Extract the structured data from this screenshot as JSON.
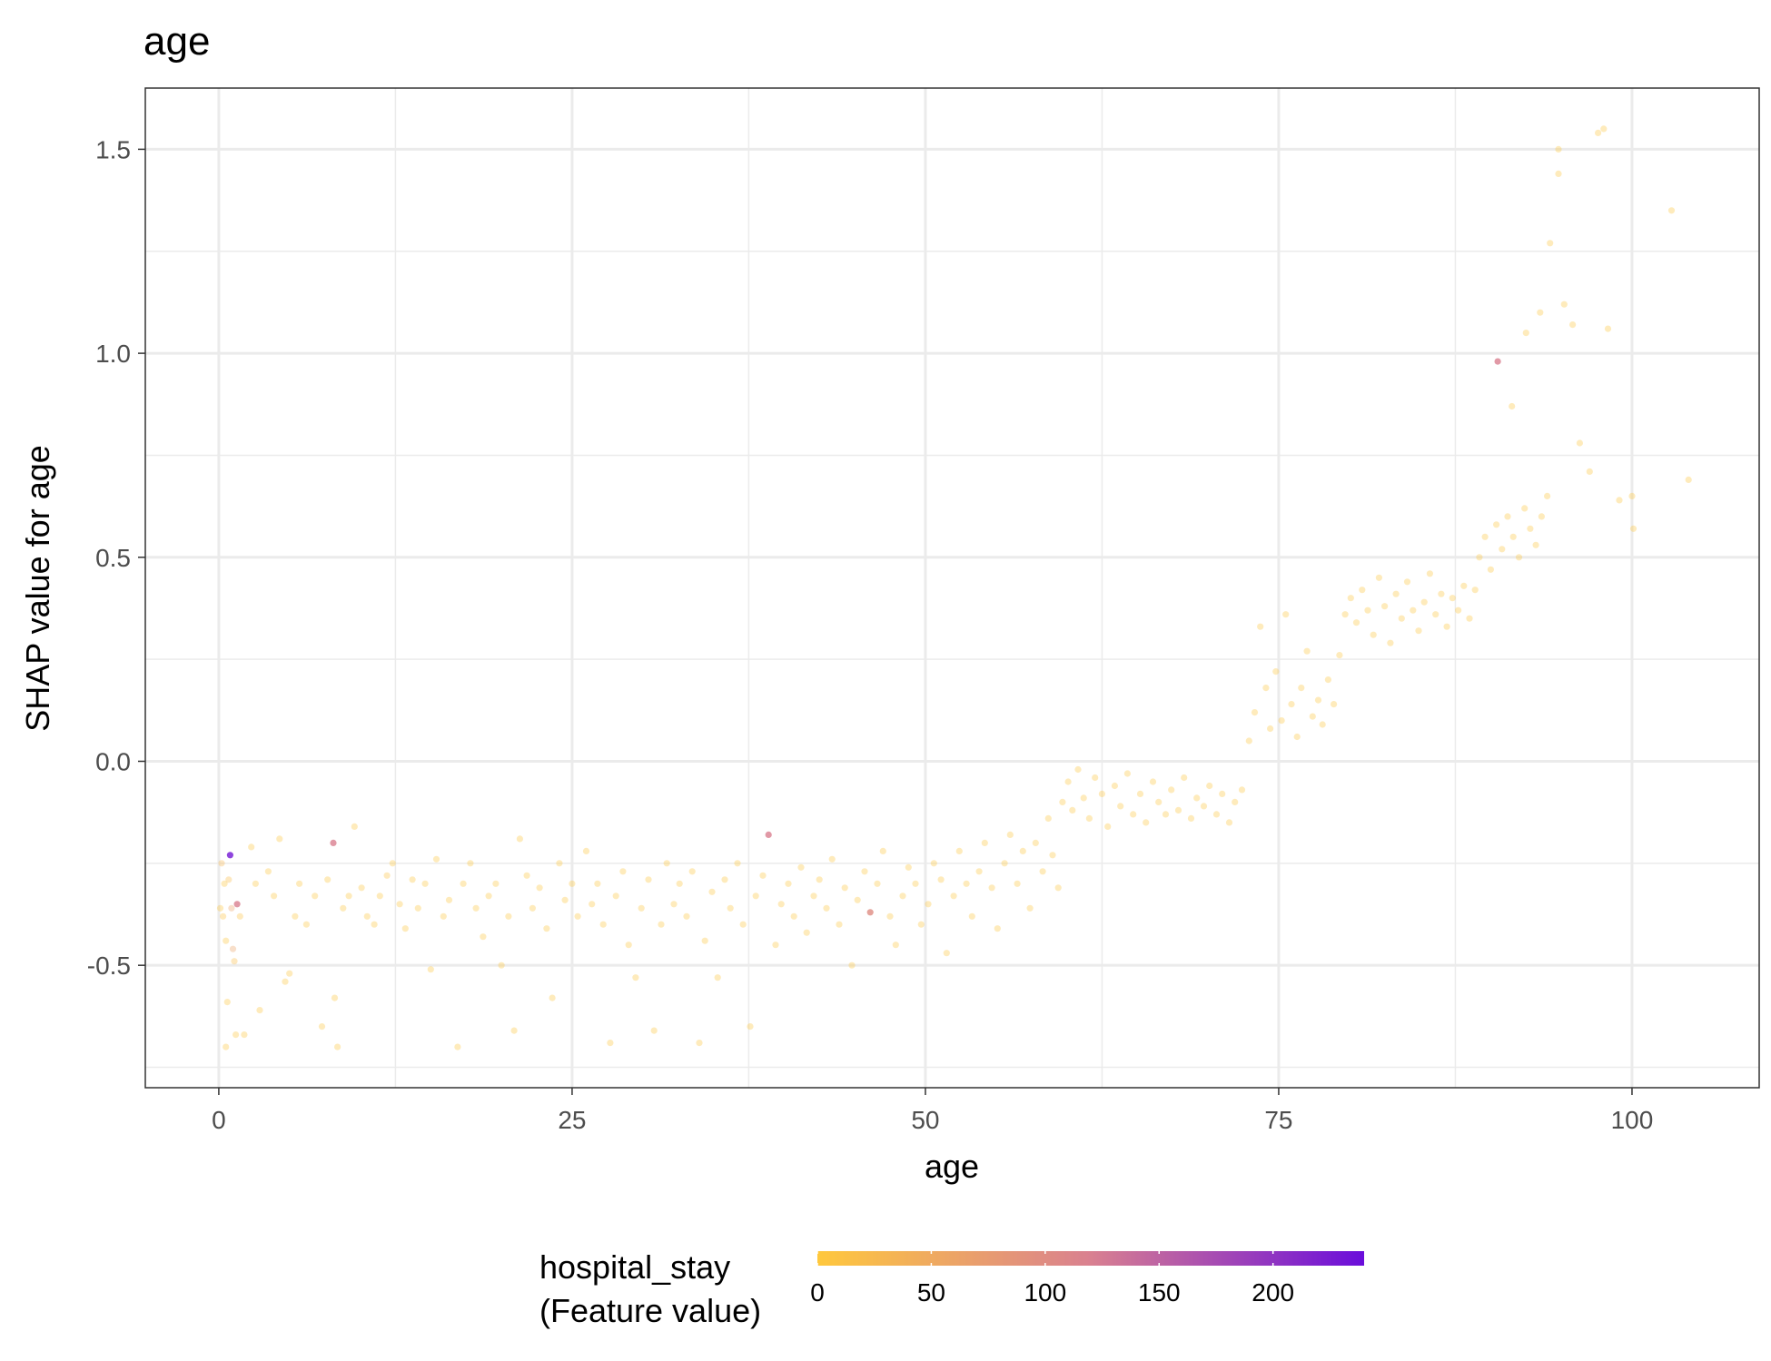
{
  "chart_data": {
    "type": "scatter",
    "title": "age",
    "xlabel": "age",
    "ylabel": "SHAP value for age",
    "xlim": [
      -5.2,
      109
    ],
    "ylim": [
      -0.8,
      1.65
    ],
    "x_ticks": [
      {
        "value": 0,
        "label": "0"
      },
      {
        "value": 25,
        "label": "25"
      },
      {
        "value": 50,
        "label": "50"
      },
      {
        "value": 75,
        "label": "75"
      },
      {
        "value": 100,
        "label": "100"
      }
    ],
    "y_ticks": [
      {
        "value": -0.5,
        "label": "-0.5"
      },
      {
        "value": 0.0,
        "label": "0.0"
      },
      {
        "value": 0.5,
        "label": "0.5"
      },
      {
        "value": 1.0,
        "label": "1.0"
      },
      {
        "value": 1.5,
        "label": "1.5"
      }
    ],
    "grid": true,
    "point_alpha": 0.35,
    "color_scale": {
      "title_lines": [
        "hospital_stay",
        "(Feature value)"
      ],
      "min": 0,
      "max": 240,
      "low_color": "#FFC83D",
      "mid_color": "#D98090",
      "high_color": "#6A0DDB",
      "ticks": [
        {
          "value": 0,
          "label": "0"
        },
        {
          "value": 50,
          "label": "50"
        },
        {
          "value": 100,
          "label": "100"
        },
        {
          "value": 150,
          "label": "150"
        },
        {
          "value": 200,
          "label": "200"
        }
      ],
      "legend_position": "bottom"
    },
    "points": [
      [
        0.1,
        -0.36,
        5
      ],
      [
        0.2,
        -0.25,
        30
      ],
      [
        0.3,
        -0.38,
        10
      ],
      [
        0.4,
        -0.3,
        5
      ],
      [
        0.5,
        -0.44,
        5
      ],
      [
        0.6,
        -0.59,
        5
      ],
      [
        0.5,
        -0.7,
        5
      ],
      [
        0.7,
        -0.29,
        20
      ],
      [
        0.8,
        -0.23,
        230
      ],
      [
        0.9,
        -0.36,
        60
      ],
      [
        1.0,
        -0.46,
        60
      ],
      [
        1.1,
        -0.49,
        20
      ],
      [
        1.2,
        -0.67,
        5
      ],
      [
        1.3,
        -0.35,
        120
      ],
      [
        1.8,
        -0.67,
        5
      ],
      [
        1.5,
        -0.38,
        10
      ],
      [
        2.3,
        -0.21,
        5
      ],
      [
        2.6,
        -0.3,
        5
      ],
      [
        2.9,
        -0.61,
        5
      ],
      [
        3.5,
        -0.27,
        5
      ],
      [
        3.9,
        -0.33,
        5
      ],
      [
        4.3,
        -0.19,
        5
      ],
      [
        4.7,
        -0.54,
        5
      ],
      [
        5.0,
        -0.52,
        5
      ],
      [
        5.4,
        -0.38,
        5
      ],
      [
        5.7,
        -0.3,
        5
      ],
      [
        6.2,
        -0.4,
        5
      ],
      [
        6.8,
        -0.33,
        5
      ],
      [
        7.3,
        -0.65,
        5
      ],
      [
        7.7,
        -0.29,
        5
      ],
      [
        8.1,
        -0.2,
        120
      ],
      [
        8.2,
        -0.58,
        5
      ],
      [
        8.4,
        -0.7,
        5
      ],
      [
        8.8,
        -0.36,
        5
      ],
      [
        9.2,
        -0.33,
        5
      ],
      [
        9.6,
        -0.16,
        5
      ],
      [
        10.1,
        -0.31,
        5
      ],
      [
        10.5,
        -0.38,
        5
      ],
      [
        11.0,
        -0.4,
        5
      ],
      [
        11.4,
        -0.33,
        5
      ],
      [
        11.9,
        -0.28,
        10
      ],
      [
        12.3,
        -0.25,
        5
      ],
      [
        12.8,
        -0.35,
        5
      ],
      [
        13.2,
        -0.41,
        5
      ],
      [
        13.7,
        -0.29,
        5
      ],
      [
        14.1,
        -0.36,
        5
      ],
      [
        14.6,
        -0.3,
        5
      ],
      [
        15.0,
        -0.51,
        5
      ],
      [
        15.4,
        -0.24,
        5
      ],
      [
        15.9,
        -0.38,
        5
      ],
      [
        16.3,
        -0.34,
        5
      ],
      [
        16.9,
        -0.7,
        5
      ],
      [
        17.3,
        -0.3,
        5
      ],
      [
        17.8,
        -0.25,
        5
      ],
      [
        18.2,
        -0.36,
        5
      ],
      [
        18.7,
        -0.43,
        5
      ],
      [
        19.1,
        -0.33,
        5
      ],
      [
        19.6,
        -0.3,
        5
      ],
      [
        20.0,
        -0.5,
        5
      ],
      [
        20.5,
        -0.38,
        5
      ],
      [
        20.9,
        -0.66,
        5
      ],
      [
        21.3,
        -0.19,
        5
      ],
      [
        21.8,
        -0.28,
        5
      ],
      [
        22.2,
        -0.36,
        5
      ],
      [
        22.7,
        -0.31,
        5
      ],
      [
        23.2,
        -0.41,
        5
      ],
      [
        23.6,
        -0.58,
        5
      ],
      [
        24.1,
        -0.25,
        5
      ],
      [
        24.5,
        -0.34,
        5
      ],
      [
        25.0,
        -0.3,
        5
      ],
      [
        25.4,
        -0.38,
        5
      ],
      [
        26.0,
        -0.22,
        5
      ],
      [
        26.4,
        -0.35,
        5
      ],
      [
        26.8,
        -0.3,
        5
      ],
      [
        27.2,
        -0.4,
        5
      ],
      [
        27.7,
        -0.69,
        5
      ],
      [
        28.1,
        -0.33,
        5
      ],
      [
        28.6,
        -0.27,
        5
      ],
      [
        29.0,
        -0.45,
        5
      ],
      [
        29.5,
        -0.53,
        5
      ],
      [
        29.9,
        -0.36,
        5
      ],
      [
        30.4,
        -0.29,
        5
      ],
      [
        30.8,
        -0.66,
        5
      ],
      [
        31.3,
        -0.4,
        5
      ],
      [
        31.7,
        -0.25,
        5
      ],
      [
        32.2,
        -0.35,
        5
      ],
      [
        32.6,
        -0.3,
        5
      ],
      [
        33.1,
        -0.38,
        5
      ],
      [
        33.5,
        -0.27,
        5
      ],
      [
        34.0,
        -0.69,
        5
      ],
      [
        34.4,
        -0.44,
        5
      ],
      [
        34.9,
        -0.32,
        5
      ],
      [
        35.3,
        -0.53,
        5
      ],
      [
        35.8,
        -0.29,
        5
      ],
      [
        36.2,
        -0.36,
        5
      ],
      [
        36.7,
        -0.25,
        5
      ],
      [
        37.1,
        -0.4,
        5
      ],
      [
        37.6,
        -0.65,
        5
      ],
      [
        38.0,
        -0.33,
        5
      ],
      [
        38.5,
        -0.28,
        5
      ],
      [
        38.9,
        -0.18,
        120
      ],
      [
        39.4,
        -0.45,
        5
      ],
      [
        39.8,
        -0.35,
        5
      ],
      [
        40.3,
        -0.3,
        5
      ],
      [
        40.7,
        -0.38,
        5
      ],
      [
        41.2,
        -0.26,
        5
      ],
      [
        41.6,
        -0.42,
        5
      ],
      [
        42.1,
        -0.33,
        5
      ],
      [
        42.5,
        -0.29,
        5
      ],
      [
        43.0,
        -0.36,
        5
      ],
      [
        43.4,
        -0.24,
        5
      ],
      [
        43.9,
        -0.4,
        5
      ],
      [
        44.3,
        -0.31,
        5
      ],
      [
        44.8,
        -0.5,
        5
      ],
      [
        45.2,
        -0.34,
        5
      ],
      [
        45.7,
        -0.27,
        5
      ],
      [
        46.1,
        -0.37,
        100
      ],
      [
        46.6,
        -0.3,
        5
      ],
      [
        47.0,
        -0.22,
        5
      ],
      [
        47.5,
        -0.38,
        5
      ],
      [
        47.9,
        -0.45,
        5
      ],
      [
        48.4,
        -0.33,
        5
      ],
      [
        48.8,
        -0.26,
        5
      ],
      [
        49.3,
        -0.3,
        5
      ],
      [
        49.7,
        -0.4,
        5
      ],
      [
        50.2,
        -0.35,
        5
      ],
      [
        50.6,
        -0.25,
        5
      ],
      [
        51.1,
        -0.29,
        5
      ],
      [
        51.5,
        -0.47,
        5
      ],
      [
        52.0,
        -0.33,
        5
      ],
      [
        52.4,
        -0.22,
        5
      ],
      [
        52.9,
        -0.3,
        5
      ],
      [
        53.3,
        -0.38,
        5
      ],
      [
        53.8,
        -0.27,
        5
      ],
      [
        54.2,
        -0.2,
        5
      ],
      [
        54.7,
        -0.31,
        5
      ],
      [
        55.1,
        -0.41,
        5
      ],
      [
        55.6,
        -0.25,
        5
      ],
      [
        56.0,
        -0.18,
        5
      ],
      [
        56.5,
        -0.3,
        5
      ],
      [
        56.9,
        -0.22,
        5
      ],
      [
        57.4,
        -0.36,
        5
      ],
      [
        57.8,
        -0.2,
        5
      ],
      [
        58.3,
        -0.27,
        5
      ],
      [
        58.7,
        -0.14,
        5
      ],
      [
        59.0,
        -0.23,
        5
      ],
      [
        59.4,
        -0.31,
        5
      ],
      [
        59.7,
        -0.1,
        5
      ],
      [
        60.1,
        -0.05,
        5
      ],
      [
        60.4,
        -0.12,
        5
      ],
      [
        60.8,
        -0.02,
        5
      ],
      [
        61.2,
        -0.09,
        5
      ],
      [
        61.6,
        -0.14,
        5
      ],
      [
        62.0,
        -0.04,
        5
      ],
      [
        62.5,
        -0.08,
        5
      ],
      [
        62.9,
        -0.16,
        5
      ],
      [
        63.4,
        -0.06,
        5
      ],
      [
        63.8,
        -0.11,
        5
      ],
      [
        64.3,
        -0.03,
        5
      ],
      [
        64.7,
        -0.13,
        5
      ],
      [
        65.2,
        -0.08,
        5
      ],
      [
        65.6,
        -0.15,
        5
      ],
      [
        66.1,
        -0.05,
        5
      ],
      [
        66.5,
        -0.1,
        5
      ],
      [
        67.0,
        -0.13,
        5
      ],
      [
        67.4,
        -0.07,
        5
      ],
      [
        67.9,
        -0.12,
        5
      ],
      [
        68.3,
        -0.04,
        5
      ],
      [
        68.8,
        -0.14,
        5
      ],
      [
        69.2,
        -0.09,
        5
      ],
      [
        69.7,
        -0.11,
        5
      ],
      [
        70.1,
        -0.06,
        5
      ],
      [
        70.6,
        -0.13,
        5
      ],
      [
        71.0,
        -0.08,
        5
      ],
      [
        71.5,
        -0.15,
        5
      ],
      [
        71.9,
        -0.1,
        5
      ],
      [
        72.4,
        -0.07,
        5
      ],
      [
        72.9,
        0.05,
        5
      ],
      [
        73.3,
        0.12,
        5
      ],
      [
        73.7,
        0.33,
        5
      ],
      [
        74.1,
        0.18,
        5
      ],
      [
        74.4,
        0.08,
        5
      ],
      [
        74.8,
        0.22,
        5
      ],
      [
        75.2,
        0.1,
        5
      ],
      [
        75.5,
        0.36,
        5
      ],
      [
        75.9,
        0.14,
        5
      ],
      [
        76.3,
        0.06,
        5
      ],
      [
        76.6,
        0.18,
        5
      ],
      [
        77.0,
        0.27,
        5
      ],
      [
        77.4,
        0.11,
        5
      ],
      [
        77.8,
        0.15,
        5
      ],
      [
        78.1,
        0.09,
        5
      ],
      [
        78.5,
        0.2,
        5
      ],
      [
        78.9,
        0.14,
        5
      ],
      [
        79.3,
        0.26,
        5
      ],
      [
        79.7,
        0.36,
        5
      ],
      [
        80.1,
        0.4,
        5
      ],
      [
        80.5,
        0.34,
        5
      ],
      [
        80.9,
        0.42,
        5
      ],
      [
        81.3,
        0.37,
        5
      ],
      [
        81.7,
        0.31,
        5
      ],
      [
        82.1,
        0.45,
        5
      ],
      [
        82.5,
        0.38,
        5
      ],
      [
        82.9,
        0.29,
        5
      ],
      [
        83.3,
        0.41,
        5
      ],
      [
        83.7,
        0.35,
        5
      ],
      [
        84.1,
        0.44,
        5
      ],
      [
        84.5,
        0.37,
        5
      ],
      [
        84.9,
        0.32,
        5
      ],
      [
        85.3,
        0.39,
        5
      ],
      [
        85.7,
        0.46,
        5
      ],
      [
        86.1,
        0.36,
        5
      ],
      [
        86.5,
        0.41,
        5
      ],
      [
        86.9,
        0.33,
        5
      ],
      [
        87.3,
        0.4,
        5
      ],
      [
        87.7,
        0.37,
        5
      ],
      [
        88.1,
        0.43,
        5
      ],
      [
        88.5,
        0.35,
        5
      ],
      [
        88.9,
        0.42,
        5
      ],
      [
        89.2,
        0.5,
        5
      ],
      [
        89.6,
        0.55,
        5
      ],
      [
        90.0,
        0.47,
        5
      ],
      [
        90.4,
        0.58,
        5
      ],
      [
        90.8,
        0.52,
        5
      ],
      [
        91.2,
        0.6,
        5
      ],
      [
        91.6,
        0.55,
        5
      ],
      [
        92.0,
        0.5,
        5
      ],
      [
        92.4,
        0.62,
        5
      ],
      [
        92.8,
        0.57,
        5
      ],
      [
        93.2,
        0.53,
        5
      ],
      [
        93.6,
        0.6,
        5
      ],
      [
        94.0,
        0.65,
        5
      ],
      [
        90.5,
        0.98,
        120
      ],
      [
        91.5,
        0.87,
        5
      ],
      [
        92.5,
        1.05,
        5
      ],
      [
        93.5,
        1.1,
        5
      ],
      [
        94.2,
        1.27,
        5
      ],
      [
        94.8,
        1.5,
        5
      ],
      [
        94.8,
        1.44,
        5
      ],
      [
        95.2,
        1.12,
        5
      ],
      [
        95.8,
        1.07,
        5
      ],
      [
        96.3,
        0.78,
        5
      ],
      [
        97.0,
        0.71,
        5
      ],
      [
        97.6,
        1.54,
        5
      ],
      [
        98.0,
        1.55,
        5
      ],
      [
        98.3,
        1.06,
        5
      ],
      [
        99.1,
        0.64,
        5
      ],
      [
        100.0,
        0.65,
        5
      ],
      [
        100.1,
        0.57,
        5
      ],
      [
        102.8,
        1.35,
        5
      ],
      [
        104.0,
        0.69,
        5
      ]
    ]
  }
}
